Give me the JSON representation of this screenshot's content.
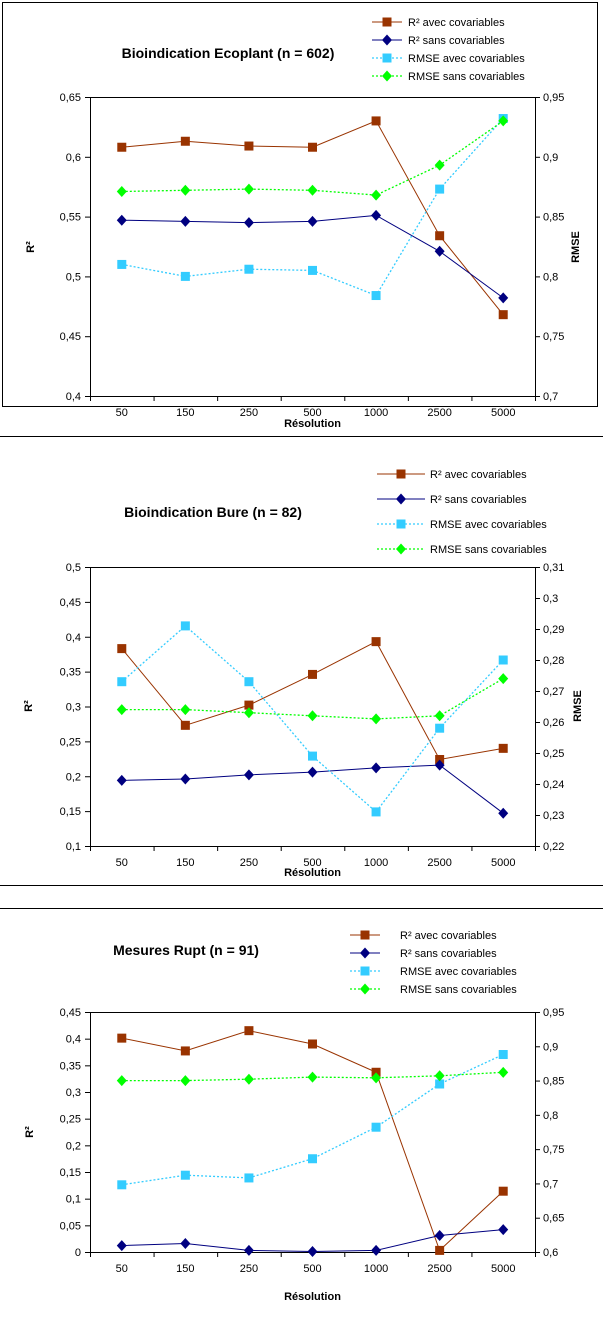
{
  "chart_data": [
    {
      "type": "line",
      "title": "Bioindication Ecoplant (n = 602)",
      "xlabel": "Résolution",
      "ylabel": "R²",
      "y2label": "RMSE",
      "categories": [
        "50",
        "150",
        "250",
        "500",
        "1000",
        "2500",
        "5000"
      ],
      "ylim": [
        0.4,
        0.65
      ],
      "yticks": [
        "0,4",
        "0,45",
        "0,5",
        "0,55",
        "0,6",
        "0,65"
      ],
      "y2lim": [
        0.7,
        0.95
      ],
      "y2ticks": [
        "0,7",
        "0,75",
        "0,8",
        "0,85",
        "0,9",
        "0,95"
      ],
      "legend_position": "top-right",
      "series": [
        {
          "name": "R² avec covariables",
          "axis": "left",
          "color": "#993300",
          "marker": "square",
          "dash": false,
          "values": [
            0.608,
            0.613,
            0.609,
            0.608,
            0.63,
            0.534,
            0.468
          ]
        },
        {
          "name": "R² sans covariables",
          "axis": "left",
          "color": "#000080",
          "marker": "diamond",
          "dash": false,
          "values": [
            0.547,
            0.546,
            0.545,
            0.546,
            0.551,
            0.521,
            0.482
          ]
        },
        {
          "name": "RMSE avec covariables",
          "axis": "right",
          "color": "#33ccff",
          "marker": "square",
          "dash": true,
          "values": [
            0.81,
            0.8,
            0.806,
            0.805,
            0.784,
            0.873,
            0.932
          ]
        },
        {
          "name": "RMSE sans covariables",
          "axis": "right",
          "color": "#00ff00",
          "marker": "diamond",
          "dash": true,
          "values": [
            0.871,
            0.872,
            0.873,
            0.872,
            0.868,
            0.893,
            0.93
          ]
        }
      ]
    },
    {
      "type": "line",
      "title": "Bioindication Bure (n = 82)",
      "xlabel": "Résolution",
      "ylabel": "R²",
      "y2label": "RMSE",
      "categories": [
        "50",
        "150",
        "250",
        "500",
        "1000",
        "2500",
        "5000"
      ],
      "ylim": [
        0.1,
        0.5
      ],
      "yticks": [
        "0,1",
        "0,15",
        "0,2",
        "0,25",
        "0,3",
        "0,35",
        "0,4",
        "0,45",
        "0,5"
      ],
      "y2lim": [
        0.22,
        0.31
      ],
      "y2ticks": [
        "0,22",
        "0,23",
        "0,24",
        "0,25",
        "0,26",
        "0,27",
        "0,28",
        "0,29",
        "0,3",
        "0,31"
      ],
      "legend_position": "top-right",
      "series": [
        {
          "name": "R² avec covariables",
          "axis": "left",
          "color": "#993300",
          "marker": "square",
          "dash": false,
          "values": [
            0.383,
            0.273,
            0.302,
            0.346,
            0.393,
            0.224,
            0.24
          ]
        },
        {
          "name": "R² sans covariables",
          "axis": "left",
          "color": "#000080",
          "marker": "diamond",
          "dash": false,
          "values": [
            0.194,
            0.196,
            0.202,
            0.206,
            0.212,
            0.216,
            0.147
          ]
        },
        {
          "name": "RMSE avec covariables",
          "axis": "right",
          "color": "#33ccff",
          "marker": "square",
          "dash": true,
          "values": [
            0.273,
            0.291,
            0.273,
            0.249,
            0.231,
            0.258,
            0.28
          ]
        },
        {
          "name": "RMSE sans covariables",
          "axis": "right",
          "color": "#00ff00",
          "marker": "diamond",
          "dash": true,
          "values": [
            0.264,
            0.264,
            0.263,
            0.262,
            0.261,
            0.262,
            0.274
          ]
        }
      ]
    },
    {
      "type": "line",
      "title": "Mesures Rupt (n = 91)",
      "xlabel": "Résolution",
      "ylabel": "R²",
      "y2label": "",
      "categories": [
        "50",
        "150",
        "250",
        "500",
        "1000",
        "2500",
        "5000"
      ],
      "ylim": [
        0,
        0.45
      ],
      "yticks": [
        "0",
        "0,05",
        "0,1",
        "0,15",
        "0,2",
        "0,25",
        "0,3",
        "0,35",
        "0,4",
        "0,45"
      ],
      "y2lim": [
        0.6,
        0.95
      ],
      "y2ticks": [
        "0,6",
        "0,65",
        "0,7",
        "0,75",
        "0,8",
        "0,85",
        "0,9",
        "0,95"
      ],
      "legend_position": "top-right",
      "series": [
        {
          "name": "R² avec covariables",
          "axis": "left",
          "color": "#993300",
          "marker": "square",
          "dash": false,
          "values": [
            0.401,
            0.377,
            0.415,
            0.39,
            0.337,
            0.003,
            0.114
          ]
        },
        {
          "name": "R² sans covariables",
          "axis": "left",
          "color": "#000080",
          "marker": "diamond",
          "dash": false,
          "values": [
            0.012,
            0.016,
            0.003,
            0.001,
            0.003,
            0.031,
            0.042
          ]
        },
        {
          "name": "RMSE avec covariables",
          "axis": "right",
          "color": "#33ccff",
          "marker": "square",
          "dash": true,
          "values": [
            0.698,
            0.712,
            0.708,
            0.736,
            0.782,
            0.845,
            0.888
          ]
        },
        {
          "name": "RMSE sans covariables",
          "axis": "right",
          "color": "#00ff00",
          "marker": "diamond",
          "dash": true,
          "values": [
            0.85,
            0.85,
            0.852,
            0.855,
            0.854,
            0.857,
            0.862
          ]
        }
      ]
    }
  ]
}
